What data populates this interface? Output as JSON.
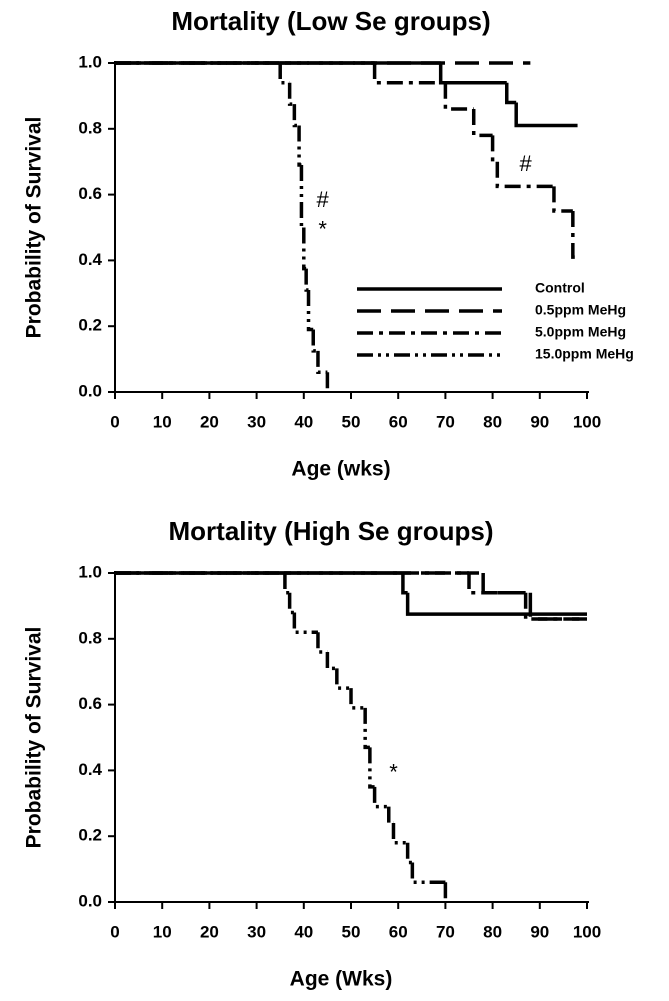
{
  "chart_data": [
    {
      "type": "step",
      "title": "Mortality (Low Se groups)",
      "xlabel": "Age (wks)",
      "ylabel": "Probability of Survival",
      "xlim": [
        0,
        100
      ],
      "ylim": [
        0,
        1
      ],
      "xticks": [
        0,
        10,
        20,
        30,
        40,
        50,
        60,
        70,
        80,
        90,
        100
      ],
      "yticks": [
        {
          "value": 0,
          "label": "0.0"
        },
        {
          "value": 0.2,
          "label": "0.2"
        },
        {
          "value": 0.4,
          "label": "0.4"
        },
        {
          "value": 0.6,
          "label": "0.6"
        },
        {
          "value": 0.8,
          "label": "0.8"
        },
        {
          "value": 1,
          "label": "1.0"
        }
      ],
      "legend": "lower right",
      "series": [
        {
          "name": "Control",
          "color": "#000000",
          "linestyle": "solid",
          "x": [
            0,
            69,
            83,
            85,
            98
          ],
          "values": [
            1,
            0.94,
            0.88,
            0.81,
            0.81
          ]
        },
        {
          "name": "0.5ppm MeHg",
          "color": "#000000",
          "linestyle": "dashed",
          "x": [
            0,
            88
          ],
          "values": [
            1,
            1
          ]
        },
        {
          "name": "5.0ppm MeHg",
          "color": "#000000",
          "linestyle": "dashdot",
          "x": [
            0,
            55,
            70,
            76,
            80,
            81,
            93,
            97,
            98
          ],
          "values": [
            1,
            0.94,
            0.86,
            0.78,
            0.7,
            0.625,
            0.55,
            0.41,
            0.41
          ]
        },
        {
          "name": "15.0ppm MeHg",
          "color": "#000000",
          "linestyle": "dashdotdot",
          "x": [
            0,
            35,
            37,
            38,
            39,
            39.5,
            40,
            40.5,
            41,
            42,
            43,
            45
          ],
          "values": [
            1,
            0.94,
            0.875,
            0.81,
            0.69,
            0.5,
            0.375,
            0.31,
            0.19,
            0.125,
            0.06,
            0
          ]
        }
      ],
      "annotations": [
        "#",
        "*",
        "#"
      ]
    },
    {
      "type": "step",
      "title": "Mortality (High Se groups)",
      "xlabel": "Age (Wks)",
      "ylabel": "Probability of Survival",
      "xlim": [
        0,
        100
      ],
      "ylim": [
        0,
        1
      ],
      "xticks": [
        0,
        10,
        20,
        30,
        40,
        50,
        60,
        70,
        80,
        90,
        100
      ],
      "yticks": [
        {
          "value": 0,
          "label": "0.0"
        },
        {
          "value": 0.2,
          "label": "0.2"
        },
        {
          "value": 0.4,
          "label": "0.4"
        },
        {
          "value": 0.6,
          "label": "0.6"
        },
        {
          "value": 0.8,
          "label": "0.8"
        },
        {
          "value": 1,
          "label": "1.0"
        }
      ],
      "series": [
        {
          "color": "#000000",
          "linestyle": "solid",
          "x": [
            0,
            61,
            62,
            100
          ],
          "values": [
            1,
            0.94,
            0.875,
            0.875
          ]
        },
        {
          "color": "#000000",
          "linestyle": "dashed",
          "x": [
            0,
            78,
            88,
            100
          ],
          "values": [
            1,
            0.94,
            0.86,
            0.86
          ]
        },
        {
          "color": "#000000",
          "linestyle": "dashdot",
          "x": [
            0,
            75,
            87,
            99
          ],
          "values": [
            1,
            0.94,
            0.86,
            0.86
          ]
        },
        {
          "color": "#000000",
          "linestyle": "dashdotdot",
          "x": [
            0,
            36,
            37,
            38,
            43,
            45,
            47,
            50,
            53,
            54,
            55,
            58,
            59,
            62,
            63,
            70
          ],
          "values": [
            1,
            0.94,
            0.88,
            0.82,
            0.76,
            0.71,
            0.65,
            0.59,
            0.47,
            0.35,
            0.29,
            0.24,
            0.18,
            0.12,
            0.06,
            0
          ]
        }
      ],
      "annotations": [
        "*"
      ]
    }
  ]
}
